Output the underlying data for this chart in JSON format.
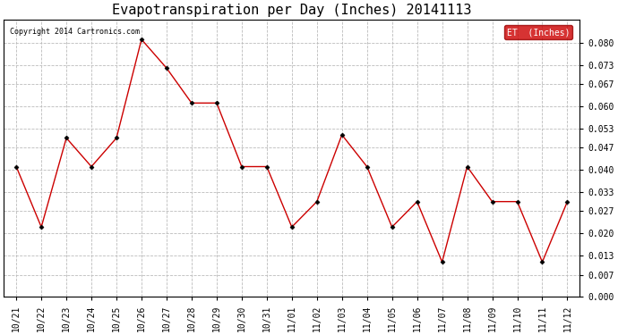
{
  "title": "Evapotranspiration per Day (Inches) 20141113",
  "copyright": "Copyright 2014 Cartronics.com",
  "legend_label": "ET  (Inches)",
  "x_labels": [
    "10/21",
    "10/22",
    "10/23",
    "10/24",
    "10/25",
    "10/26",
    "10/27",
    "10/28",
    "10/29",
    "10/30",
    "10/31",
    "11/01",
    "11/02",
    "11/03",
    "11/04",
    "11/05",
    "11/06",
    "11/07",
    "11/08",
    "11/09",
    "11/10",
    "11/11",
    "11/12"
  ],
  "y_values": [
    0.041,
    0.022,
    0.05,
    0.041,
    0.05,
    0.081,
    0.072,
    0.061,
    0.061,
    0.041,
    0.041,
    0.022,
    0.03,
    0.051,
    0.041,
    0.022,
    0.03,
    0.011,
    0.041,
    0.03,
    0.03,
    0.011,
    0.03
  ],
  "line_color": "#cc0000",
  "marker_color": "#000000",
  "background_color": "#ffffff",
  "grid_color": "#bbbbbb",
  "ylim": [
    0.0,
    0.0873
  ],
  "yticks": [
    0.0,
    0.007,
    0.013,
    0.02,
    0.027,
    0.033,
    0.04,
    0.047,
    0.053,
    0.06,
    0.067,
    0.073,
    0.08
  ],
  "title_fontsize": 11,
  "tick_fontsize": 7,
  "copyright_fontsize": 6,
  "legend_bg": "#cc0000",
  "legend_text_color": "#ffffff",
  "legend_fontsize": 7
}
